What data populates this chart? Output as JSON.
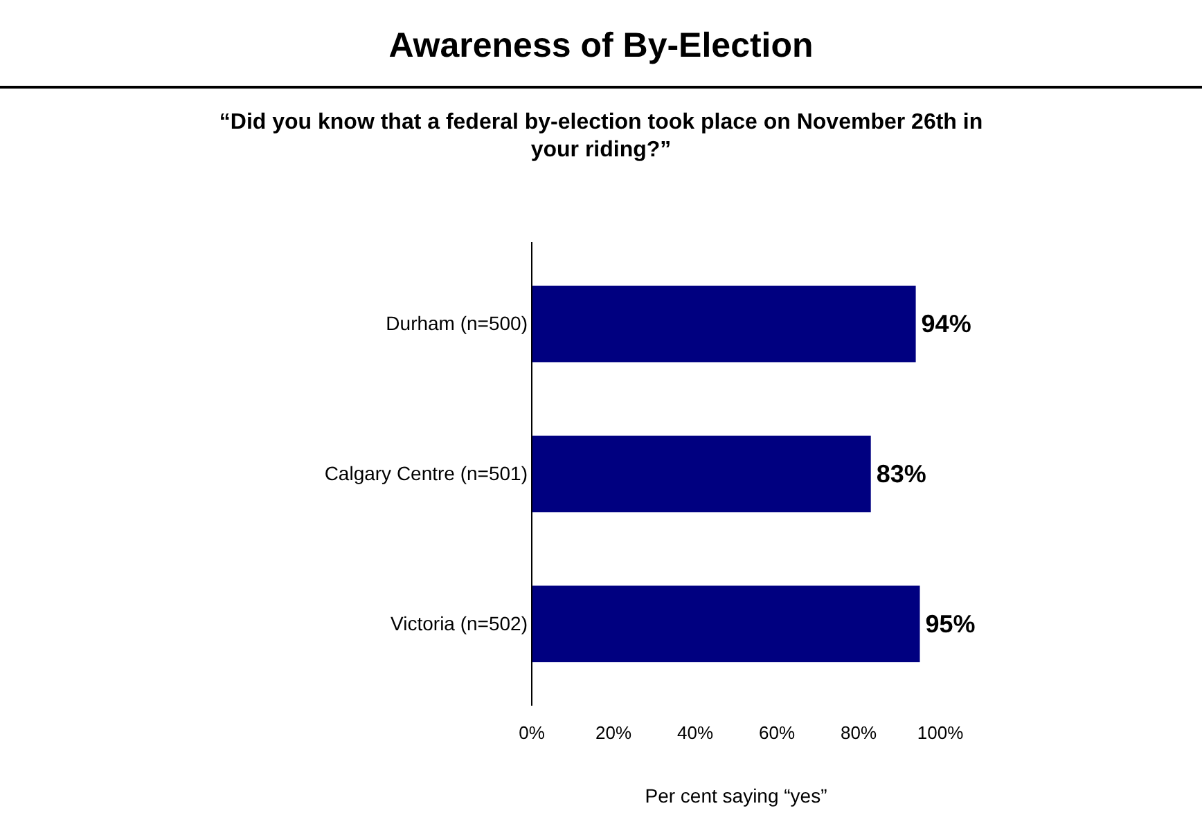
{
  "chart_data": {
    "type": "bar",
    "orientation": "horizontal",
    "title": "Awareness of By-Election",
    "subtitle": "“Did you know that a federal by-election took place on November 26th in your riding?”",
    "xlabel": "Per cent saying “yes”",
    "categories": [
      "Durham (n=500)",
      "Calgary Centre (n=501)",
      "Victoria (n=502)"
    ],
    "values": [
      94,
      83,
      95
    ],
    "value_labels": [
      "94%",
      "83%",
      "95%"
    ],
    "color": "#000080",
    "xlim": [
      0,
      100
    ],
    "xticks": [
      {
        "value": 0,
        "label": "0%"
      },
      {
        "value": 20,
        "label": "20%"
      },
      {
        "value": 40,
        "label": "40%"
      },
      {
        "value": 60,
        "label": "60%"
      },
      {
        "value": 80,
        "label": "80%"
      },
      {
        "value": 100,
        "label": "100%"
      }
    ],
    "grid": false
  }
}
